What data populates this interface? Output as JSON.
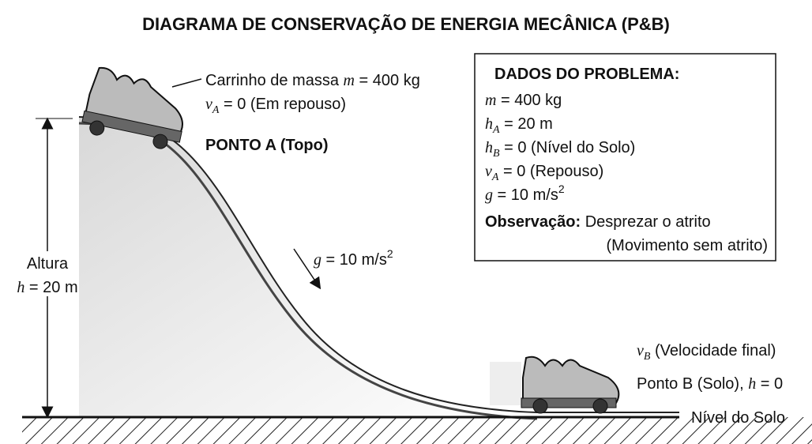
{
  "title": "DIAGRAMA DE CONSERVAÇÃO DE ENERGIA MECÂNICA (P&B)",
  "point_a": {
    "mass_label": {
      "text": "Carrinho de massa ",
      "var": "m",
      "rest": " = 400 kg"
    },
    "velocity": {
      "var": "v",
      "sub": "A",
      "rest": " = 0 (Em repouso)"
    },
    "name": "PONTO A (Topo)"
  },
  "height": {
    "label": "Altura",
    "var": "h",
    "rest": " = 20 m"
  },
  "gravity": {
    "var": "g",
    "rest": " = 10 m/s",
    "sup": "2"
  },
  "point_b": {
    "velocity": {
      "var": "v",
      "sub": "B",
      "rest": " (Velocidade final)"
    },
    "name": {
      "text": "Ponto B (Solo), ",
      "var": "h",
      "rest": " = 0"
    }
  },
  "ground": "Nível do Solo",
  "data_box": {
    "title": "DADOS DO PROBLEMA:",
    "lines": [
      {
        "var": "m",
        "sub": "",
        "rest": " = 400 kg"
      },
      {
        "var": "h",
        "sub": "A",
        "rest": " = 20 m"
      },
      {
        "var": "h",
        "sub": "B",
        "rest": " = 0 (Nível do Solo)"
      },
      {
        "var": "v",
        "sub": "A",
        "rest": " = 0 (Repouso)"
      },
      {
        "var": "g",
        "sub": "",
        "rest": " = 10 m/s",
        "sup": "2"
      }
    ],
    "note_label": "Observação:",
    "note_text": " Desprezar o atrito",
    "note_cont": "(Movimento sem atrito)"
  }
}
